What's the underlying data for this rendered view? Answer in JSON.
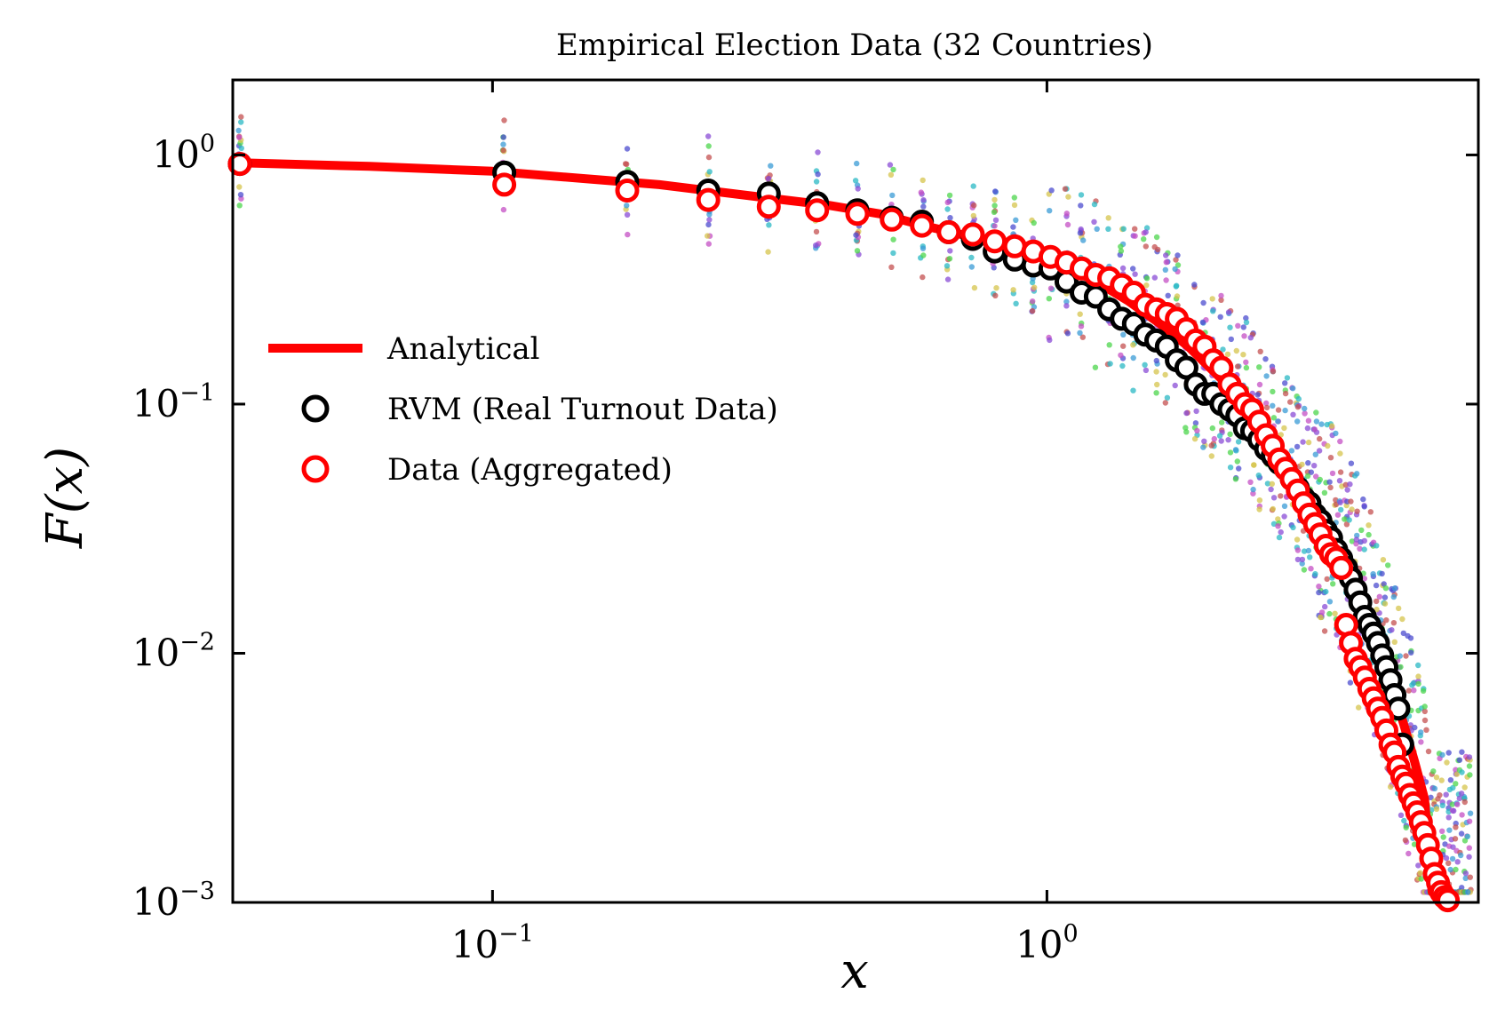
{
  "chart_data": {
    "type": "scatter",
    "title": "Empirical Election Data (32 Countries)",
    "xlabel": "x",
    "ylabel": "F(x)",
    "xscale": "log",
    "yscale": "log",
    "xlim": [
      0.034,
      6.0
    ],
    "ylim": [
      0.001,
      2.0
    ],
    "grid": false,
    "legend_position": "center-left",
    "x_ticks": [
      {
        "value": 0.1,
        "base": "10",
        "exp": "−1"
      },
      {
        "value": 1.0,
        "base": "10",
        "exp": "0"
      }
    ],
    "y_ticks": [
      {
        "value": 1.0,
        "base": "10",
        "exp": "0"
      },
      {
        "value": 0.1,
        "base": "10",
        "exp": "−1"
      },
      {
        "value": 0.01,
        "base": "10",
        "exp": "−2"
      },
      {
        "value": 0.001,
        "base": "10",
        "exp": "−3"
      }
    ],
    "series": [
      {
        "name": "Analytical",
        "kind": "line",
        "color": "#ff0000",
        "x": [
          0.035,
          0.06,
          0.1,
          0.15,
          0.2,
          0.3,
          0.4,
          0.5,
          0.6,
          0.7,
          0.8,
          0.9,
          1.0,
          1.2,
          1.4,
          1.6,
          1.8,
          2.0,
          2.2,
          2.4,
          2.6,
          2.8,
          3.0,
          3.2,
          3.4,
          3.6,
          3.8,
          4.0,
          4.2,
          4.4,
          4.6,
          4.8,
          4.95
        ],
        "y": [
          0.93,
          0.9,
          0.86,
          0.8,
          0.76,
          0.68,
          0.63,
          0.58,
          0.52,
          0.48,
          0.44,
          0.4,
          0.37,
          0.32,
          0.26,
          0.21,
          0.17,
          0.135,
          0.11,
          0.085,
          0.067,
          0.053,
          0.042,
          0.033,
          0.025,
          0.019,
          0.014,
          0.01,
          0.0073,
          0.0052,
          0.0037,
          0.0026,
          0.0011
        ]
      },
      {
        "name": "RVM (Real Turnout Data)",
        "kind": "markers",
        "color": "#000000",
        "x": [
          0.035,
          0.105,
          0.175,
          0.245,
          0.315,
          0.385,
          0.455,
          0.525,
          0.595,
          0.665,
          0.735,
          0.805,
          0.875,
          0.945,
          1.015,
          1.085,
          1.155,
          1.225,
          1.295,
          1.365,
          1.435,
          1.505,
          1.575,
          1.645,
          1.715,
          1.785,
          1.855,
          1.925,
          1.995,
          2.065,
          2.135,
          2.205,
          2.275,
          2.345,
          2.415,
          2.485,
          2.555,
          2.625,
          2.695,
          2.765,
          2.835,
          2.905,
          2.975,
          3.045,
          3.115,
          3.185,
          3.255,
          3.325,
          3.395,
          3.465,
          3.535,
          3.605,
          3.675,
          3.745,
          3.815,
          3.885,
          3.955,
          4.025,
          4.095,
          4.165,
          4.235,
          4.305,
          4.375
        ],
        "y": [
          0.92,
          0.85,
          0.78,
          0.72,
          0.7,
          0.64,
          0.6,
          0.56,
          0.54,
          0.49,
          0.46,
          0.41,
          0.38,
          0.36,
          0.35,
          0.31,
          0.28,
          0.27,
          0.24,
          0.22,
          0.21,
          0.19,
          0.18,
          0.17,
          0.15,
          0.14,
          0.12,
          0.11,
          0.11,
          0.1,
          0.095,
          0.09,
          0.08,
          0.078,
          0.072,
          0.066,
          0.062,
          0.058,
          0.055,
          0.05,
          0.046,
          0.042,
          0.04,
          0.036,
          0.034,
          0.031,
          0.029,
          0.026,
          0.024,
          0.022,
          0.02,
          0.018,
          0.016,
          0.014,
          0.013,
          0.012,
          0.011,
          0.0098,
          0.0088,
          0.0078,
          0.0068,
          0.006,
          0.0043
        ]
      },
      {
        "name": "Data (Aggregated)",
        "kind": "markers",
        "color": "#ff0000",
        "x": [
          0.035,
          0.105,
          0.175,
          0.245,
          0.315,
          0.385,
          0.455,
          0.525,
          0.595,
          0.665,
          0.735,
          0.805,
          0.875,
          0.945,
          1.015,
          1.085,
          1.155,
          1.225,
          1.295,
          1.365,
          1.435,
          1.505,
          1.575,
          1.645,
          1.715,
          1.785,
          1.855,
          1.925,
          1.995,
          2.065,
          2.135,
          2.205,
          2.275,
          2.345,
          2.415,
          2.485,
          2.555,
          2.625,
          2.695,
          2.765,
          2.835,
          2.905,
          2.975,
          3.045,
          3.115,
          3.185,
          3.255,
          3.325,
          3.395,
          3.465,
          3.535,
          3.605,
          3.675,
          3.745,
          3.815,
          3.885,
          3.955,
          4.025,
          4.095,
          4.165,
          4.235,
          4.305,
          4.375,
          4.445,
          4.515,
          4.585,
          4.655,
          4.725,
          4.795,
          4.865,
          4.935,
          5.005,
          5.075,
          5.145,
          5.215,
          5.285,
          5.5
        ],
        "y": [
          0.92,
          0.76,
          0.72,
          0.66,
          0.62,
          0.6,
          0.58,
          0.55,
          0.52,
          0.49,
          0.48,
          0.45,
          0.43,
          0.41,
          0.39,
          0.37,
          0.35,
          0.33,
          0.32,
          0.3,
          0.28,
          0.25,
          0.24,
          0.23,
          0.22,
          0.2,
          0.18,
          0.17,
          0.15,
          0.14,
          0.12,
          0.11,
          0.1,
          0.095,
          0.085,
          0.075,
          0.068,
          0.06,
          0.055,
          0.05,
          0.045,
          0.04,
          0.036,
          0.033,
          0.03,
          0.027,
          0.025,
          0.024,
          0.022,
          0.013,
          0.011,
          0.0095,
          0.0088,
          0.008,
          0.0072,
          0.0066,
          0.006,
          0.0055,
          0.0049,
          0.0043,
          0.004,
          0.0035,
          0.0032,
          0.003,
          0.0027,
          0.0025,
          0.0023,
          0.0021,
          0.0019,
          0.0017,
          0.0015,
          0.0013,
          0.0012,
          0.0011,
          0.00105,
          0.00102,
          0.00098
        ]
      }
    ],
    "background_scatter": {
      "description_visible": false,
      "countries": 32,
      "colors": [
        "#4c4ccf",
        "#2ab8c4",
        "#4cd64c",
        "#c44fc4",
        "#d6c44c",
        "#c45050",
        "#3a9bd6",
        "#8a4cd6"
      ],
      "x_values": [
        0.035,
        0.105,
        0.175,
        0.245,
        0.315,
        0.385,
        0.455,
        0.525,
        0.595,
        0.665,
        0.735,
        0.805,
        0.875,
        0.945,
        1.015,
        1.085,
        1.155,
        1.225,
        1.295,
        1.365,
        1.435,
        1.505,
        1.575,
        1.645,
        1.715,
        1.785,
        1.855,
        1.925,
        1.995,
        2.065,
        2.135,
        2.205,
        2.275,
        2.345,
        2.415,
        2.485,
        2.555,
        2.625,
        2.695,
        2.765,
        2.835,
        2.905,
        2.975,
        3.045,
        3.115,
        3.185,
        3.255,
        3.325,
        3.395,
        3.465,
        3.535,
        3.605,
        3.675,
        3.745,
        3.815,
        3.885,
        3.955,
        4.025,
        4.095,
        4.165,
        4.235,
        4.305,
        4.375,
        4.445,
        4.515,
        4.585,
        4.655,
        4.725,
        4.795,
        4.865,
        4.935,
        5.005,
        5.075,
        5.145,
        5.215,
        5.285,
        5.355,
        5.425,
        5.495,
        5.565,
        5.635,
        5.705,
        5.775
      ]
    }
  }
}
